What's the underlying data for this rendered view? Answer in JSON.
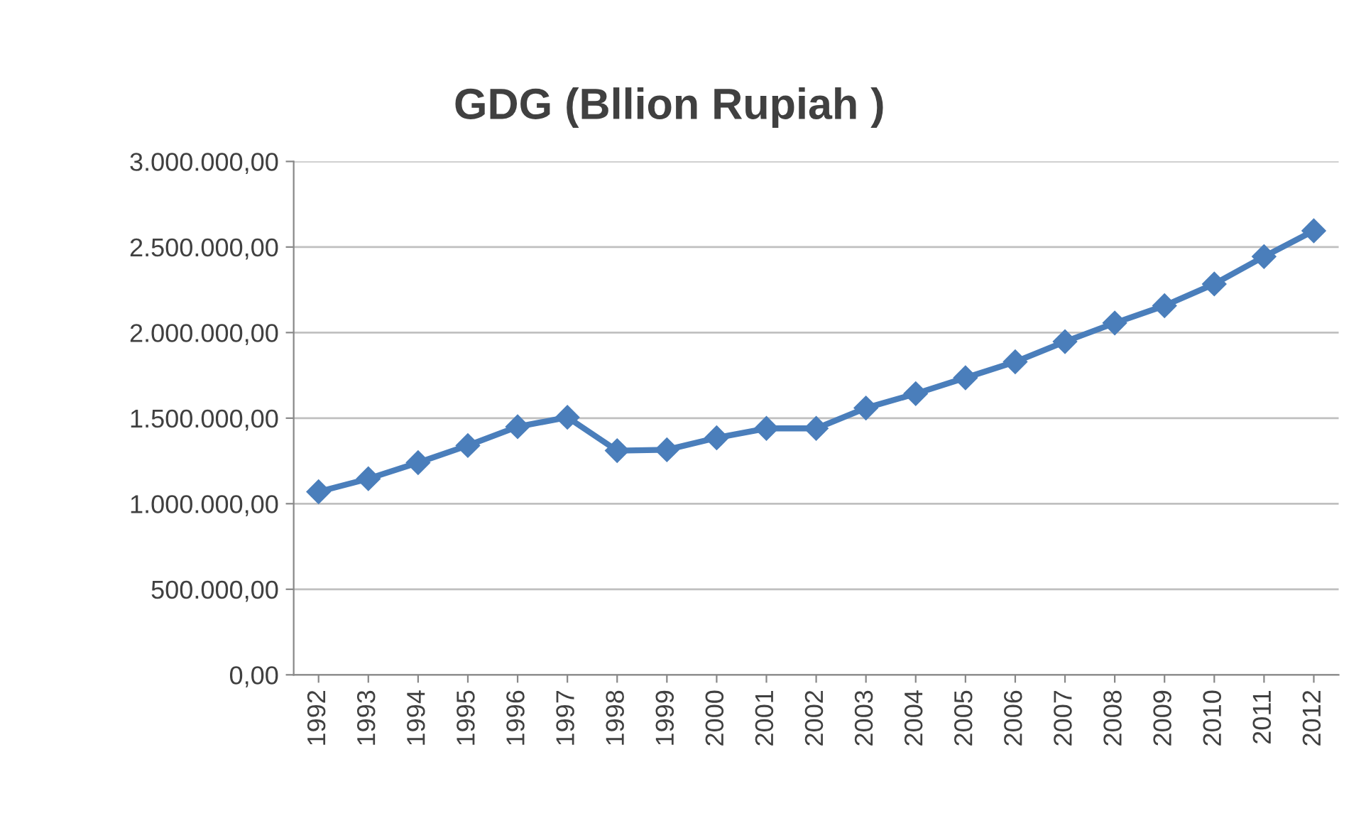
{
  "chart_data": {
    "type": "line",
    "title": "GDG (Bllion Rupiah )",
    "categories": [
      "1992",
      "1993",
      "1994",
      "1995",
      "1996",
      "1997",
      "1998",
      "1999",
      "2000",
      "2001",
      "2002",
      "2003",
      "2004",
      "2005",
      "2006",
      "2007",
      "2008",
      "2009",
      "2010",
      "2011",
      "2012"
    ],
    "series": [
      {
        "color": "#4a7ebb",
        "values": [
          1070000,
          1146000,
          1240000,
          1340000,
          1450000,
          1505000,
          1310000,
          1315000,
          1385000,
          1440000,
          1440000,
          1559000,
          1643000,
          1736000,
          1829000,
          1947000,
          2056000,
          2157000,
          2284000,
          2444000,
          2595000
        ]
      }
    ],
    "ylim": [
      0,
      3000000
    ],
    "yticks": [
      {
        "value": 0,
        "label": "0,00"
      },
      {
        "value": 500000,
        "label": "500.000,00"
      },
      {
        "value": 1000000,
        "label": "1.000.000,00"
      },
      {
        "value": 1500000,
        "label": "1.500.000,00"
      },
      {
        "value": 2000000,
        "label": "2.000.000,00"
      },
      {
        "value": 2500000,
        "label": "2.500.000,00"
      },
      {
        "value": 3000000,
        "label": "3.000.000,00"
      }
    ],
    "grid": "y",
    "marker": "diamond",
    "line_style": "solid"
  }
}
